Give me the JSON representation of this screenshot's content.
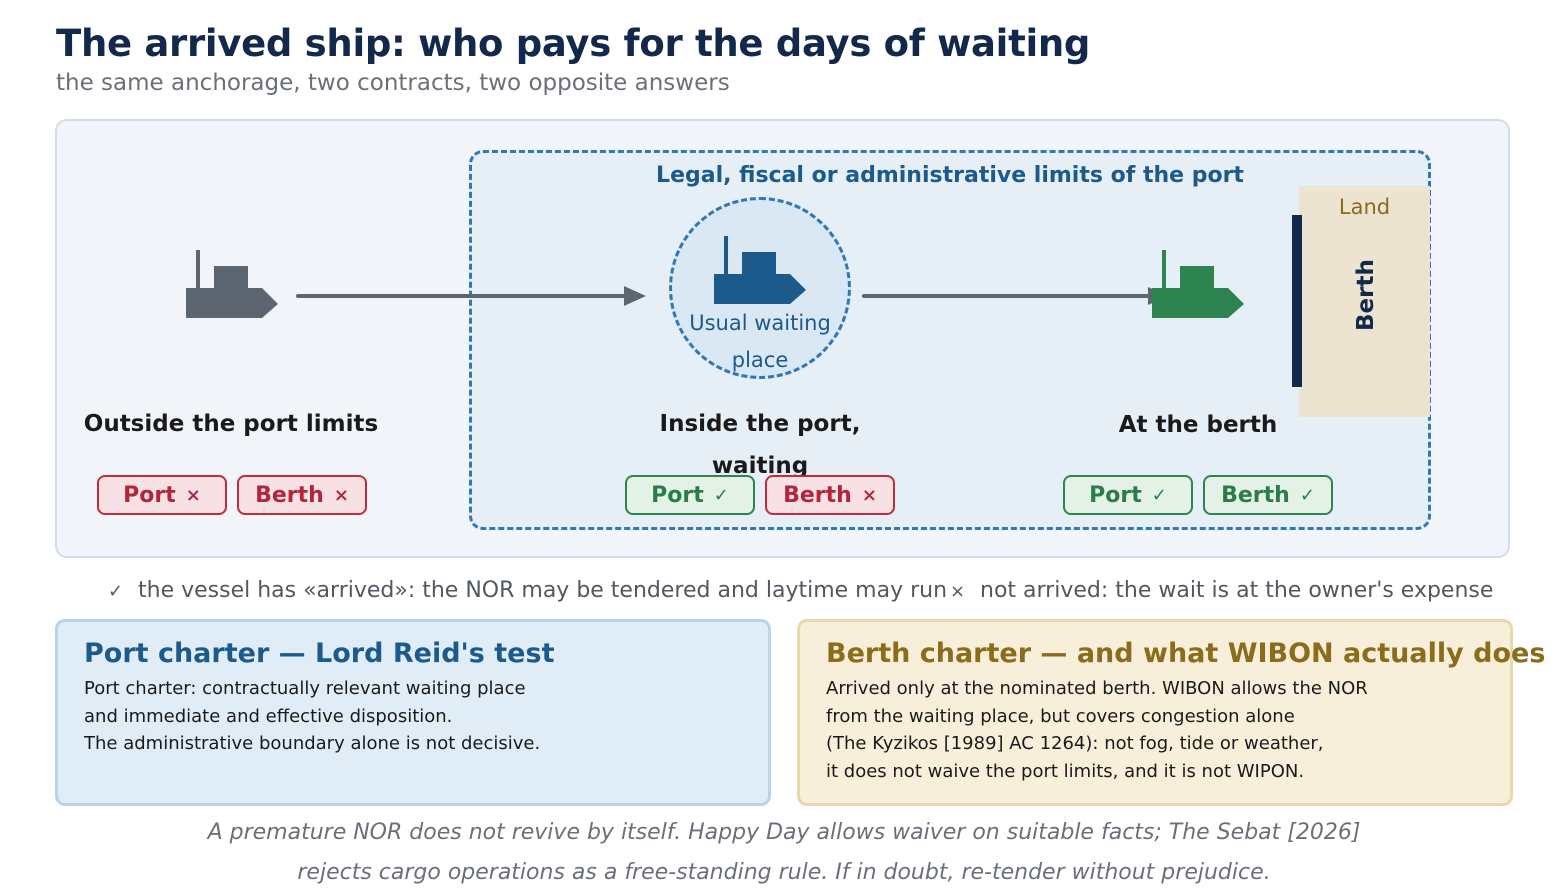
{
  "header": {
    "title": "The arrived ship: who pays for the days of waiting",
    "subtitle": "the same anchorage, two contracts, two opposite answers"
  },
  "diagram": {
    "port_limits_label": "Legal, fiscal or administrative limits of the port",
    "waiting_place_label": "Usual waiting place",
    "land_label": "Land",
    "berth_label": "Berth",
    "zones": [
      {
        "title": "Outside the port limits",
        "ship_color": "#5d6670",
        "badges": [
          {
            "label": "Port",
            "ok": false
          },
          {
            "label": "Berth",
            "ok": false
          }
        ]
      },
      {
        "title": "Inside the port, waiting",
        "ship_color": "#1c5a8c",
        "badges": [
          {
            "label": "Port",
            "ok": true
          },
          {
            "label": "Berth",
            "ok": false
          }
        ]
      },
      {
        "title": "At the berth",
        "ship_color": "#2e8450",
        "badges": [
          {
            "label": "Port",
            "ok": true
          },
          {
            "label": "Berth",
            "ok": true
          }
        ]
      }
    ],
    "symbols": {
      "check": "✓",
      "cross": "×"
    }
  },
  "legend": {
    "arrived": "the vessel has «arrived»: the NOR may be tendered and laytime may run",
    "not_arrived": "not arrived: the wait is at the owner's expense"
  },
  "cards": {
    "port": {
      "title": "Port charter — Lord Reid's test",
      "lines": [
        "Port charter: contractually relevant waiting place",
        "and immediate and effective disposition.",
        "The administrative boundary alone is not decisive."
      ]
    },
    "berth": {
      "title": "Berth charter — and what WIBON actually does",
      "lines": [
        "Arrived only at the nominated berth. WIBON allows the NOR",
        "from the waiting place, but covers congestion alone",
        "(The Kyzikos [1989] AC 1264): not fog, tide or weather,",
        "it does not waive the port limits, and it is not WIPON."
      ]
    }
  },
  "footnote": {
    "line1": "A premature NOR does not revive by itself. Happy Day allows waiver on suitable facts; The Sebat [2026]",
    "line2": "rejects cargo operations as a free-standing rule. If in doubt, re-tender without prejudice."
  },
  "colors": {
    "navy": "#13294b",
    "port_blue": "#2e78b4",
    "ok_green": "#2e8450",
    "bad_red": "#c02c3c",
    "sand": "#ece4d1"
  }
}
